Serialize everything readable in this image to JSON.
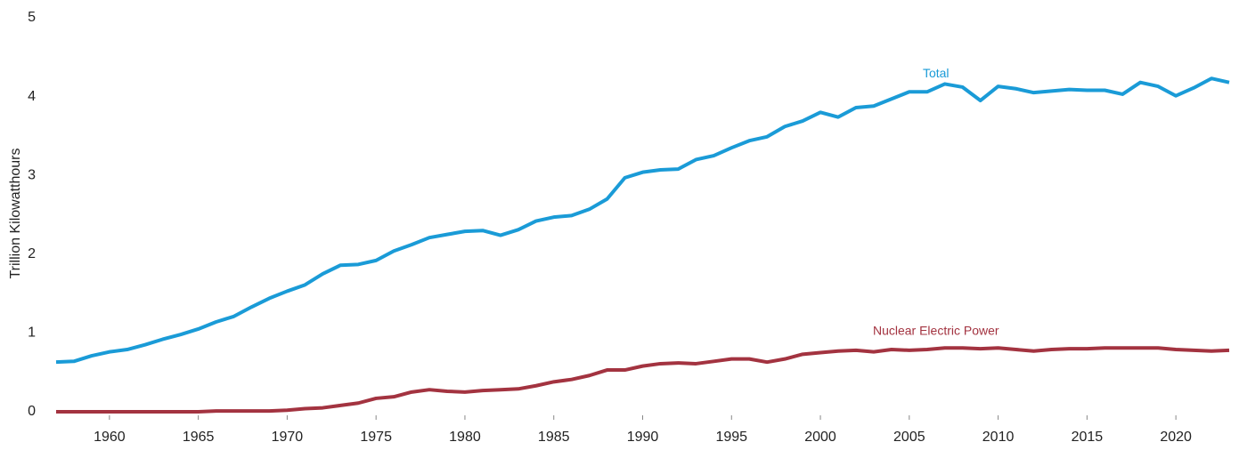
{
  "chart_data": {
    "type": "line",
    "y_label": "Trillion Kilowatthours",
    "x": [
      1957,
      1958,
      1959,
      1960,
      1961,
      1962,
      1963,
      1964,
      1965,
      1966,
      1967,
      1968,
      1969,
      1970,
      1971,
      1972,
      1973,
      1974,
      1975,
      1976,
      1977,
      1978,
      1979,
      1980,
      1981,
      1982,
      1983,
      1984,
      1985,
      1986,
      1987,
      1988,
      1989,
      1990,
      1991,
      1992,
      1993,
      1994,
      1995,
      1996,
      1997,
      1998,
      1999,
      2000,
      2001,
      2002,
      2003,
      2004,
      2005,
      2006,
      2007,
      2008,
      2009,
      2010,
      2011,
      2012,
      2013,
      2014,
      2015,
      2016,
      2017,
      2018,
      2019,
      2020,
      2021,
      2022,
      2023
    ],
    "series": [
      {
        "name": "Total",
        "color": "#1a9bd7",
        "values": [
          0.63,
          0.64,
          0.71,
          0.76,
          0.79,
          0.85,
          0.92,
          0.98,
          1.05,
          1.14,
          1.21,
          1.33,
          1.44,
          1.53,
          1.61,
          1.75,
          1.86,
          1.87,
          1.92,
          2.04,
          2.12,
          2.21,
          2.25,
          2.29,
          2.3,
          2.24,
          2.31,
          2.42,
          2.47,
          2.49,
          2.57,
          2.7,
          2.97,
          3.04,
          3.07,
          3.08,
          3.2,
          3.25,
          3.35,
          3.44,
          3.49,
          3.62,
          3.69,
          3.8,
          3.74,
          3.86,
          3.88,
          3.97,
          4.06,
          4.06,
          4.16,
          4.12,
          3.95,
          4.13,
          4.1,
          4.05,
          4.07,
          4.09,
          4.08,
          4.08,
          4.03,
          4.18,
          4.13,
          4.01,
          4.11,
          4.23,
          4.18
        ]
      },
      {
        "name": "Nuclear Electric Power",
        "color": "#a33340",
        "values": [
          0,
          0,
          0,
          0,
          0,
          0,
          0,
          0,
          0,
          0.01,
          0.01,
          0.01,
          0.01,
          0.02,
          0.04,
          0.05,
          0.08,
          0.11,
          0.17,
          0.19,
          0.25,
          0.28,
          0.26,
          0.25,
          0.27,
          0.28,
          0.29,
          0.33,
          0.38,
          0.41,
          0.46,
          0.53,
          0.53,
          0.58,
          0.61,
          0.62,
          0.61,
          0.64,
          0.67,
          0.67,
          0.63,
          0.67,
          0.73,
          0.75,
          0.77,
          0.78,
          0.76,
          0.79,
          0.78,
          0.79,
          0.81,
          0.81,
          0.8,
          0.81,
          0.79,
          0.77,
          0.79,
          0.8,
          0.8,
          0.81,
          0.81,
          0.81,
          0.81,
          0.79,
          0.78,
          0.77,
          0.78
        ]
      }
    ],
    "xlim": [
      1957,
      2023
    ],
    "xticks": [
      1960,
      1965,
      1970,
      1975,
      1980,
      1985,
      1990,
      1995,
      2000,
      2005,
      2010,
      2015,
      2020
    ],
    "ylim": [
      0,
      5
    ],
    "yticks": [
      0,
      1,
      2,
      3,
      4,
      5
    ],
    "grid": false
  }
}
